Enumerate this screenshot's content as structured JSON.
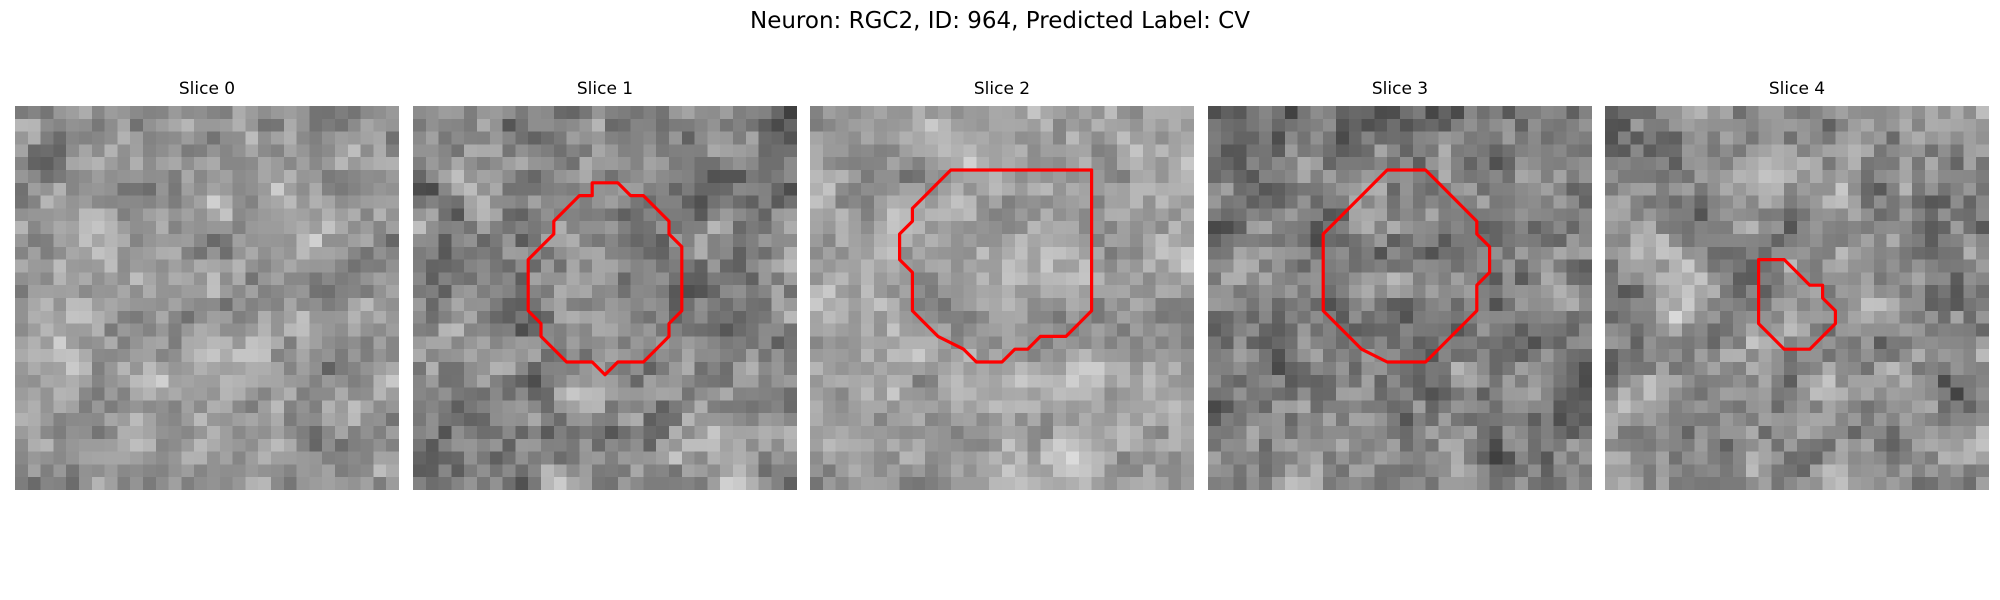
{
  "figure": {
    "title": "Neuron: RGC2, ID: 964, Predicted Label: CV",
    "contour_color": "#ff0000"
  },
  "panels": [
    {
      "title": "Slice 0",
      "seed": 11,
      "mean": 150,
      "contrast": 60,
      "has_outline": false,
      "outline": []
    },
    {
      "title": "Slice 1",
      "seed": 23,
      "mean": 135,
      "contrast": 70,
      "has_outline": true,
      "outline": [
        [
          14,
          6
        ],
        [
          16,
          6
        ],
        [
          17,
          7
        ],
        [
          18,
          7
        ],
        [
          20,
          9
        ],
        [
          20,
          10
        ],
        [
          21,
          11
        ],
        [
          21,
          16
        ],
        [
          20,
          17
        ],
        [
          20,
          18
        ],
        [
          19,
          19
        ],
        [
          18,
          20
        ],
        [
          16,
          20
        ],
        [
          15,
          21
        ],
        [
          14,
          20
        ],
        [
          12,
          20
        ],
        [
          10,
          18
        ],
        [
          10,
          17
        ],
        [
          9,
          16
        ],
        [
          9,
          12
        ],
        [
          10,
          11
        ],
        [
          11,
          10
        ],
        [
          11,
          9
        ],
        [
          13,
          7
        ],
        [
          14,
          7
        ]
      ]
    },
    {
      "title": "Slice 2",
      "seed": 37,
      "mean": 160,
      "contrast": 55,
      "has_outline": true,
      "outline": [
        [
          13,
          5
        ],
        [
          22,
          5
        ],
        [
          22,
          6
        ],
        [
          22,
          16
        ],
        [
          21,
          17
        ],
        [
          20,
          18
        ],
        [
          18,
          18
        ],
        [
          17,
          19
        ],
        [
          16,
          19
        ],
        [
          15,
          20
        ],
        [
          13,
          20
        ],
        [
          12,
          19
        ],
        [
          10,
          18
        ],
        [
          9,
          17
        ],
        [
          8,
          16
        ],
        [
          8,
          13
        ],
        [
          7,
          12
        ],
        [
          7,
          10
        ],
        [
          8,
          9
        ],
        [
          8,
          8
        ],
        [
          9,
          7
        ],
        [
          10,
          6
        ],
        [
          11,
          5
        ]
      ]
    },
    {
      "title": "Slice 3",
      "seed": 53,
      "mean": 128,
      "contrast": 72,
      "has_outline": true,
      "outline": [
        [
          14,
          5
        ],
        [
          17,
          5
        ],
        [
          18,
          6
        ],
        [
          19,
          7
        ],
        [
          21,
          9
        ],
        [
          21,
          10
        ],
        [
          22,
          11
        ],
        [
          22,
          13
        ],
        [
          21,
          14
        ],
        [
          21,
          16
        ],
        [
          20,
          17
        ],
        [
          19,
          18
        ],
        [
          18,
          19
        ],
        [
          17,
          20
        ],
        [
          14,
          20
        ],
        [
          12,
          19
        ],
        [
          11,
          18
        ],
        [
          10,
          17
        ],
        [
          9,
          16
        ],
        [
          9,
          10
        ],
        [
          10,
          9
        ],
        [
          11,
          8
        ],
        [
          12,
          7
        ],
        [
          13,
          6
        ]
      ]
    },
    {
      "title": "Slice 4",
      "seed": 71,
      "mean": 140,
      "contrast": 68,
      "has_outline": true,
      "outline": [
        [
          12,
          12
        ],
        [
          14,
          12
        ],
        [
          15,
          13
        ],
        [
          16,
          14
        ],
        [
          17,
          14
        ],
        [
          17,
          15
        ],
        [
          18,
          16
        ],
        [
          18,
          17
        ],
        [
          17,
          18
        ],
        [
          16,
          19
        ],
        [
          14,
          19
        ],
        [
          13,
          18
        ],
        [
          12,
          17
        ],
        [
          12,
          13
        ]
      ]
    }
  ]
}
